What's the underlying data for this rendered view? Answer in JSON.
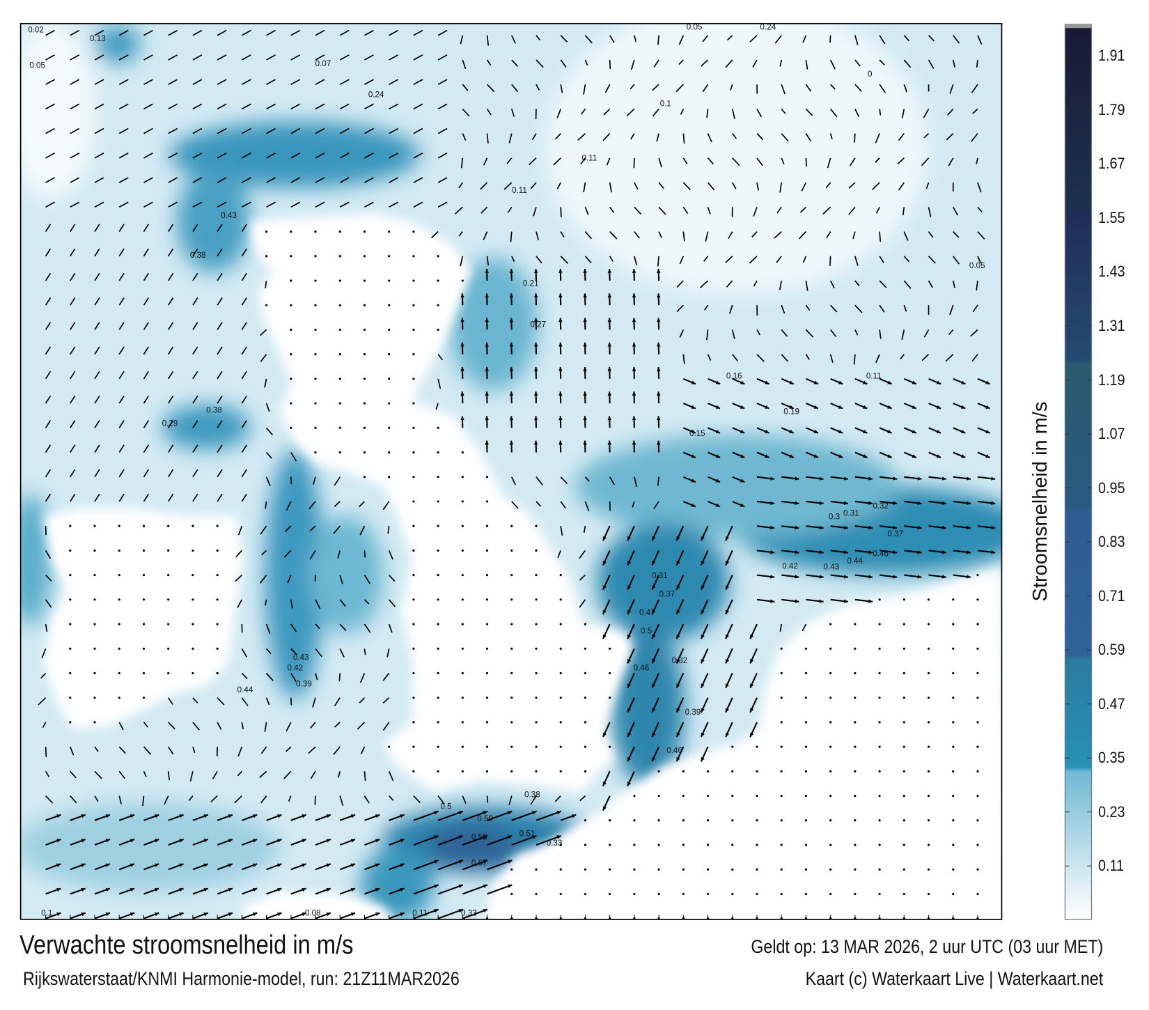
{
  "title": "Verwachte stroomsnelheid in m/s",
  "subtitle": "Rijkswaterstaat/KNMI Harmonie-model, run: 21Z11MAR2026",
  "valid_time": "Geldt op: 13 MAR 2026, 2 uur UTC (03 uur MET)",
  "credit": "Kaart (c) Waterkaart Live | Waterkaart.net",
  "colorbar": {
    "label": "Stroomsnelheid in m/s",
    "ticks": [
      "1.91",
      "1.79",
      "1.67",
      "1.55",
      "1.43",
      "1.31",
      "1.19",
      "1.07",
      "0.95",
      "0.83",
      "0.71",
      "0.59",
      "0.47",
      "0.35",
      "0.23",
      "0.11"
    ],
    "colors": {
      "low": "#ffffff",
      "light": "#8cc8dc",
      "mid": "#2b8fb6",
      "blue": "#2f5f97",
      "teal_dark": "#29586f",
      "navy": "#1f2b52",
      "top": "#181a35"
    }
  },
  "map": {
    "sea_color": "#d3eaf3",
    "land_color": "#ffffff",
    "speed_labels": [
      "0.42",
      "0.43",
      "0.44",
      "0.46",
      "0.3",
      "0.31",
      "0.32",
      "0.37",
      "0.31",
      "0.37",
      "0.47",
      "0.5",
      "0.32",
      "0.46",
      "0.39",
      "0.46",
      "0.59",
      "0.58",
      "0.51",
      "0.67",
      "0.5",
      "0.33",
      "0.38",
      "0.39",
      "0.42",
      "0.43",
      "0.44",
      "0.38",
      "0.29",
      "0.43",
      "0.38",
      "0.33",
      "0.11",
      "0.08",
      "0.1",
      "0.05",
      "0.11",
      "0.19",
      "0.16",
      "0.27",
      "0.21",
      "0.15",
      "0.11",
      "0.07",
      "0.24",
      "0.24",
      "0.13",
      "0.02",
      "0.05",
      "0",
      "0.1",
      "0.11",
      "0.05"
    ]
  }
}
